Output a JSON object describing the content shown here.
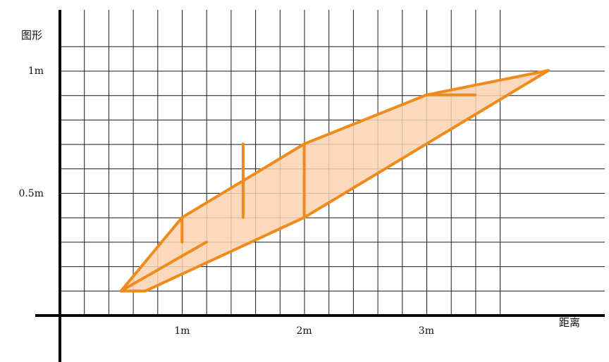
{
  "diagram": {
    "y_axis_label": "图形",
    "x_axis_label": "距离",
    "x_ticks": [
      {
        "label": "1m",
        "value": 1
      },
      {
        "label": "2m",
        "value": 2
      },
      {
        "label": "3m",
        "value": 3
      }
    ],
    "y_ticks": [
      {
        "label": "0.5m",
        "value": 0.5
      },
      {
        "label": "1m",
        "value": 1.0
      }
    ],
    "colors": {
      "outline": "#ef8a1c",
      "fill": "#fad2b0",
      "grid": "#1a1a1a",
      "axis": "#000000"
    },
    "shape_outline": [
      [
        0.5,
        0.0
      ],
      [
        0.7,
        0.0
      ],
      [
        2.0,
        0.3
      ],
      [
        4.0,
        0.9
      ],
      [
        3.0,
        0.8
      ],
      [
        2.0,
        0.6
      ],
      [
        1.0,
        0.3
      ]
    ],
    "inner_segments": [
      [
        [
          0.5,
          0.0
        ],
        [
          1.2,
          0.2
        ]
      ],
      [
        [
          1.0,
          0.3
        ],
        [
          1.0,
          0.2
        ]
      ],
      [
        [
          2.0,
          0.6
        ],
        [
          2.0,
          0.3
        ]
      ],
      [
        [
          1.5,
          0.6
        ],
        [
          1.5,
          0.3
        ]
      ],
      [
        [
          3.0,
          0.8
        ],
        [
          3.4,
          0.8
        ]
      ]
    ]
  }
}
